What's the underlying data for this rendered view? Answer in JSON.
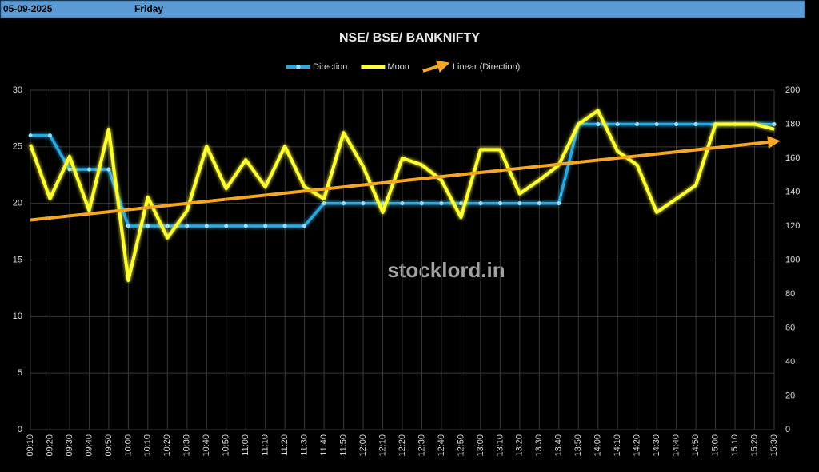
{
  "header": {
    "date": "05-09-2025",
    "day": "Friday"
  },
  "chart_data": {
    "type": "line",
    "title": "NSE/ BSE/ BANKNIFTY",
    "watermark": "stocklord.in",
    "categories": [
      "09:10",
      "09:20",
      "09:30",
      "09:40",
      "09:50",
      "10:00",
      "10:10",
      "10:20",
      "10:30",
      "10:40",
      "10:50",
      "11:00",
      "11:10",
      "11:20",
      "11:30",
      "11:40",
      "11:50",
      "12:00",
      "12:10",
      "12:20",
      "12:30",
      "12:40",
      "12:50",
      "13:00",
      "13:10",
      "13:20",
      "13:30",
      "13:40",
      "13:50",
      "14:00",
      "14:10",
      "14:20",
      "14:30",
      "14:40",
      "14:50",
      "15:00",
      "15:10",
      "15:20",
      "15:30"
    ],
    "series": [
      {
        "name": "Direction",
        "color": "#2aa8e0",
        "axis": "y",
        "markers": true,
        "values": [
          26,
          26,
          23,
          23,
          23,
          18,
          18,
          18,
          18,
          18,
          18,
          18,
          18,
          18,
          18,
          20,
          20,
          20,
          20,
          20,
          20,
          20,
          20,
          20,
          20,
          20,
          20,
          20,
          27,
          27,
          27,
          27,
          27,
          27,
          27,
          27,
          27,
          27,
          27
        ]
      },
      {
        "name": "Moon",
        "color": "#ffff33",
        "axis": "y2",
        "markers": false,
        "values": [
          168,
          136,
          161,
          129,
          177,
          88,
          137,
          113,
          129,
          167,
          142,
          159,
          143,
          167,
          143,
          136,
          175,
          155,
          128,
          160,
          156,
          147,
          125,
          165,
          165,
          139,
          147,
          156,
          180,
          188,
          164,
          156,
          128,
          136,
          144,
          180,
          180,
          180,
          177
        ]
      }
    ],
    "trendline": {
      "name": "Linear (Direction)",
      "series": 0,
      "color": "#f5a623"
    },
    "ylim": [
      0,
      30
    ],
    "yticks": [
      0,
      5,
      10,
      15,
      20,
      25,
      30
    ],
    "y2lim": [
      0,
      200
    ],
    "y2ticks": [
      0,
      20,
      40,
      60,
      80,
      100,
      120,
      140,
      160,
      180,
      200
    ],
    "grid": true,
    "legend": "top"
  }
}
